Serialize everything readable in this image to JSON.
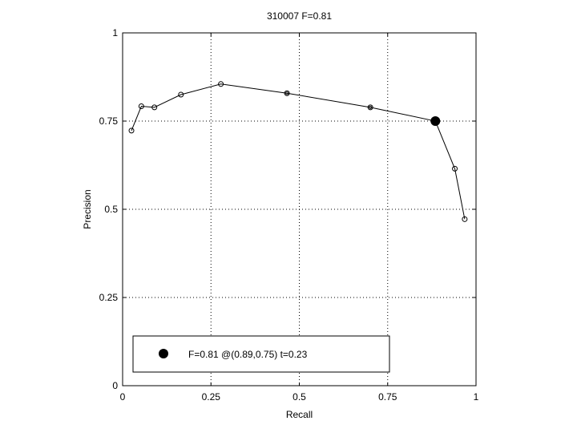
{
  "chart_data": {
    "type": "line",
    "title": "310007 F=0.81",
    "xlabel": "Recall",
    "ylabel": "Precision",
    "xlim": [
      0,
      1
    ],
    "ylim": [
      0,
      1
    ],
    "grid": true,
    "xticks": [
      0,
      0.25,
      0.5,
      0.75,
      1
    ],
    "yticks": [
      0,
      0.25,
      0.5,
      0.75,
      1
    ],
    "xtick_labels": [
      "0",
      "0.25",
      "0.5",
      "0.75",
      "1"
    ],
    "ytick_labels": [
      "0",
      "0.25",
      "0.5",
      "0.75",
      "1"
    ],
    "series": [
      {
        "x": [
          0.025,
          0.053,
          0.09,
          0.165,
          0.278,
          0.465,
          0.701,
          0.885,
          0.94,
          0.968
        ],
        "y": [
          0.723,
          0.792,
          0.789,
          0.825,
          0.855,
          0.829,
          0.789,
          0.75,
          0.615,
          0.472
        ],
        "double_ring": [
          false,
          false,
          false,
          false,
          false,
          true,
          true,
          false,
          false,
          false
        ]
      }
    ],
    "best_point": {
      "x": 0.885,
      "y": 0.75
    },
    "legend": {
      "position": "bottom",
      "label": "F=0.81 @(0.89,0.75) t=0.23"
    },
    "colors": {
      "line": "#000000",
      "grid": "#000000",
      "background": "#ffffff"
    }
  }
}
